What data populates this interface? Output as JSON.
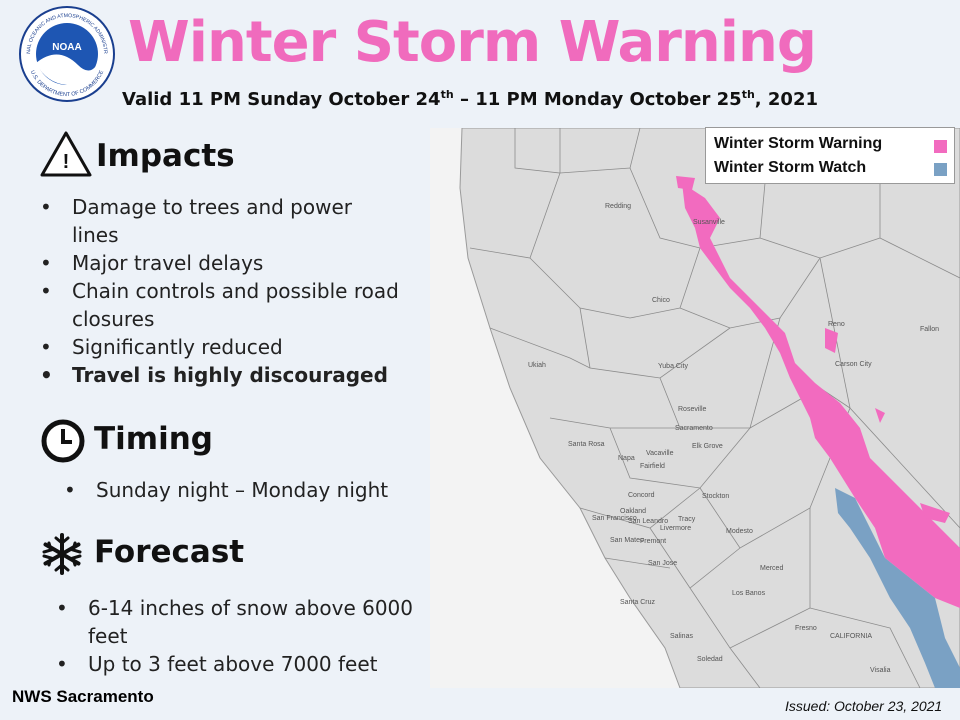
{
  "header": {
    "logo_text": "NOAA",
    "logo_ring_top": "NATIONAL OCEANIC AND ATMOSPHERIC ADMINISTRATION",
    "logo_ring_bottom": "U.S. DEPARTMENT OF COMMERCE",
    "title": "Winter Storm Warning",
    "subtitle": [
      "Valid 11 PM Sunday October 24",
      "th",
      " – 11 PM Monday October 25",
      "th",
      ", 2021"
    ]
  },
  "sections": [
    {
      "heading": "Impacts",
      "bullets": [
        "Damage to trees and power lines",
        "Major travel delays",
        "Chain controls and possible road closures",
        "Significantly reduced",
        "Travel is highly discouraged"
      ]
    },
    {
      "heading": "Timing",
      "bullets": [
        "Sunday night – Monday night"
      ]
    },
    {
      "heading": "Forecast",
      "bullets": [
        "6-14 inches of snow above 6000 feet",
        "Up to 3 feet above 7000 feet"
      ]
    }
  ],
  "legend": [
    "Winter Storm Warning",
    "Winter Storm Watch"
  ],
  "map_labels": [
    "Redding",
    "Susanville",
    "Chico",
    "Reno",
    "Fallon",
    "Ukiah",
    "Yuba City",
    "Carson City",
    "Roseville",
    "Sacramento",
    "Santa Rosa",
    "Elk Grove",
    "Vacaville",
    "Napa",
    "Fairfield",
    "Concord",
    "Stockton",
    "San Francisco",
    "Oakland",
    "San Leandro",
    "Livermore",
    "Tracy",
    "Modesto",
    "San Mateo",
    "Fremont",
    "San Jose",
    "Merced",
    "Los Banos",
    "Santa Cruz",
    "CALIFORNIA",
    "Fresno",
    "Salinas",
    "Soledad",
    "Visalia"
  ],
  "footer": {
    "office": "NWS Sacramento",
    "issued": "Issued: October 23, 2021"
  }
}
